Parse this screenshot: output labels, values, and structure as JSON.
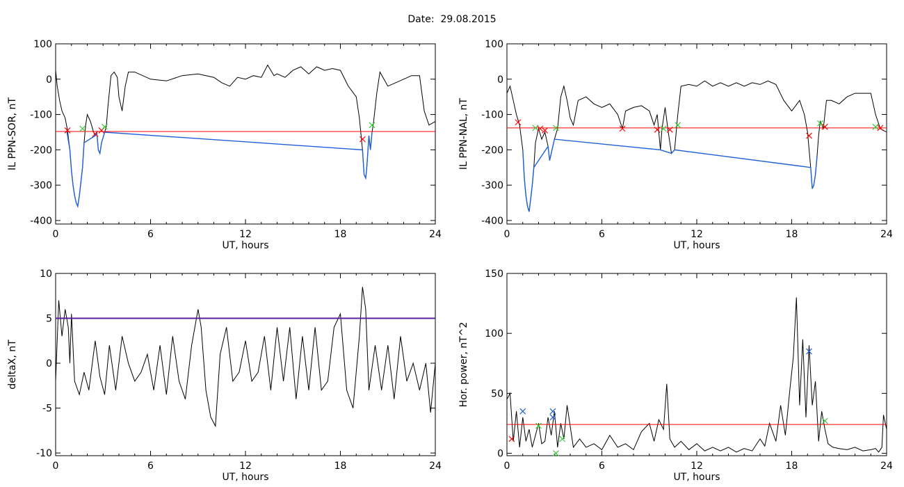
{
  "page": {
    "title_label": "Date:",
    "title_date": "29.08.2015"
  },
  "chart_data": [
    {
      "type": "line",
      "xlabel": "UT, hours",
      "ylabel": "IL PPN-SOR, nT",
      "xlim": [
        0,
        24
      ],
      "ylim": [
        -410,
        100
      ],
      "xticks": [
        0,
        6,
        12,
        18,
        24
      ],
      "yticks": [
        100,
        0,
        -100,
        -200,
        -300,
        -400
      ],
      "grid": false,
      "series": [
        {
          "color": "#000000",
          "x": [
            0,
            0.1,
            0.25,
            0.4,
            0.6,
            0.75,
            0.9,
            1.0,
            1.1,
            1.2,
            1.3,
            1.4,
            1.5,
            1.6,
            1.7,
            1.8,
            1.9,
            2.0,
            2.2,
            2.4,
            2.5,
            2.6,
            2.7,
            2.8,
            2.9,
            3.0,
            3.1,
            3.2,
            3.3,
            3.5,
            3.7,
            3.9,
            4.0,
            4.2,
            4.4,
            4.6,
            5.0,
            6.0,
            7.0,
            8.0,
            9.0,
            10.0,
            10.5,
            11.0,
            11.5,
            12.0,
            12.5,
            13.0,
            13.4,
            13.8,
            14.0,
            14.5,
            15.0,
            15.5,
            16.0,
            16.5,
            17.0,
            17.5,
            18.0,
            18.5,
            19.0,
            19.2,
            19.4,
            19.5,
            19.6,
            19.65,
            19.7,
            19.8,
            19.9,
            20.0,
            20.1,
            20.3,
            20.5,
            21.0,
            22.0,
            22.5,
            23.0,
            23.3,
            23.6,
            24.0
          ],
          "y": [
            25,
            -20,
            -60,
            -90,
            -110,
            -145,
            -200,
            -260,
            -300,
            -330,
            -350,
            -360,
            -330,
            -290,
            -250,
            -180,
            -130,
            -100,
            -120,
            -150,
            -160,
            -150,
            -200,
            -210,
            -180,
            -165,
            -150,
            -135,
            -80,
            10,
            20,
            5,
            -50,
            -90,
            -20,
            20,
            20,
            0,
            -5,
            10,
            15,
            5,
            -10,
            -20,
            5,
            0,
            10,
            5,
            40,
            10,
            15,
            5,
            25,
            35,
            15,
            35,
            25,
            30,
            25,
            -20,
            -50,
            -110,
            -200,
            -270,
            -280,
            -260,
            -230,
            -160,
            -200,
            -150,
            -120,
            -40,
            20,
            -20,
            0,
            10,
            10,
            -90,
            -130,
            -120
          ],
          "label": ""
        },
        {
          "color": "#1e5fd8",
          "x": [
            0.7,
            0.9,
            1.0,
            1.1,
            1.2,
            1.3,
            1.4,
            1.5,
            1.6,
            1.7,
            1.8,
            2.5,
            2.6,
            2.7,
            2.8,
            2.9,
            3.0,
            3.1,
            19.4,
            19.5,
            19.6,
            19.65,
            19.7,
            19.8,
            19.9,
            20.0
          ],
          "y": [
            -145,
            -200,
            -260,
            -300,
            -330,
            -350,
            -360,
            -330,
            -290,
            -250,
            -180,
            -160,
            -150,
            -200,
            -210,
            -180,
            -165,
            -150,
            -200,
            -270,
            -280,
            -260,
            -230,
            -160,
            -200,
            -150
          ],
          "label": ""
        }
      ],
      "threshold": {
        "y": -148,
        "color": "#ff0000"
      },
      "markers": [
        {
          "x": 0.75,
          "y": -145,
          "color": "#ff0000"
        },
        {
          "x": 1.7,
          "y": -140,
          "color": "#33cc33"
        },
        {
          "x": 2.5,
          "y": -155,
          "color": "#ff0000"
        },
        {
          "x": 2.9,
          "y": -145,
          "color": "#ff0000"
        },
        {
          "x": 3.1,
          "y": -135,
          "color": "#33cc33"
        },
        {
          "x": 19.4,
          "y": -170,
          "color": "#ff0000"
        },
        {
          "x": 20.0,
          "y": -130,
          "color": "#33cc33"
        }
      ]
    },
    {
      "type": "line",
      "xlabel": "UT, hours",
      "ylabel": "IL PPN-NAL, nT",
      "xlim": [
        0,
        24
      ],
      "ylim": [
        -410,
        100
      ],
      "xticks": [
        0,
        6,
        12,
        18,
        24
      ],
      "yticks": [
        100,
        0,
        -100,
        -200,
        -300,
        -400
      ],
      "grid": false,
      "series": [
        {
          "color": "#000000",
          "x": [
            0,
            0.2,
            0.4,
            0.6,
            0.8,
            1.0,
            1.1,
            1.2,
            1.3,
            1.4,
            1.5,
            1.6,
            1.7,
            1.8,
            2.0,
            2.2,
            2.4,
            2.6,
            2.7,
            2.8,
            3.0,
            3.2,
            3.4,
            3.6,
            3.8,
            4.0,
            4.2,
            4.5,
            5.0,
            5.5,
            6.0,
            6.5,
            7.0,
            7.3,
            7.5,
            8.0,
            8.5,
            9.0,
            9.3,
            9.5,
            9.7,
            9.8,
            10.0,
            10.2,
            10.4,
            10.6,
            10.8,
            11.0,
            11.5,
            12.0,
            12.5,
            13.0,
            13.5,
            14.0,
            14.5,
            15.0,
            15.5,
            16.0,
            16.5,
            17.0,
            17.5,
            18.0,
            18.5,
            18.8,
            19.0,
            19.2,
            19.3,
            19.4,
            19.5,
            19.6,
            19.7,
            19.8,
            20.0,
            20.2,
            20.5,
            21.0,
            21.5,
            22.0,
            22.5,
            23.0,
            23.3,
            23.6,
            24.0
          ],
          "y": [
            -40,
            -20,
            -60,
            -100,
            -130,
            -200,
            -280,
            -330,
            -360,
            -375,
            -340,
            -300,
            -250,
            -180,
            -140,
            -170,
            -150,
            -190,
            -230,
            -210,
            -170,
            -140,
            -50,
            -20,
            -60,
            -110,
            -130,
            -60,
            -50,
            -70,
            -80,
            -70,
            -100,
            -140,
            -90,
            -80,
            -75,
            -90,
            -130,
            -100,
            -200,
            -140,
            -80,
            -150,
            -210,
            -200,
            -100,
            -20,
            -15,
            -20,
            -5,
            -20,
            -10,
            -20,
            -10,
            -20,
            -10,
            -15,
            -5,
            -15,
            -60,
            -90,
            -60,
            -100,
            -150,
            -250,
            -310,
            -300,
            -270,
            -220,
            -160,
            -120,
            -140,
            -60,
            -60,
            -70,
            -50,
            -40,
            -40,
            -40,
            -100,
            -140,
            -150
          ],
          "label": ""
        },
        {
          "color": "#1e5fd8",
          "x": [
            1.0,
            1.1,
            1.2,
            1.3,
            1.4,
            1.5,
            1.6,
            1.7,
            2.6,
            2.7,
            2.8,
            3.0,
            9.7,
            10.4,
            10.6,
            19.2,
            19.3,
            19.4,
            19.5,
            19.6
          ],
          "y": [
            -200,
            -280,
            -330,
            -360,
            -375,
            -340,
            -300,
            -250,
            -190,
            -230,
            -210,
            -170,
            -200,
            -210,
            -200,
            -250,
            -310,
            -300,
            -270,
            -220
          ],
          "label": ""
        }
      ],
      "threshold": {
        "y": -138,
        "color": "#ff0000"
      },
      "markers": [
        {
          "x": 0.7,
          "y": -122,
          "color": "#ff0000"
        },
        {
          "x": 1.8,
          "y": -138,
          "color": "#33cc33"
        },
        {
          "x": 2.1,
          "y": -140,
          "color": "#ff0000"
        },
        {
          "x": 2.4,
          "y": -145,
          "color": "#ff0000"
        },
        {
          "x": 3.1,
          "y": -138,
          "color": "#33cc33"
        },
        {
          "x": 7.3,
          "y": -140,
          "color": "#ff0000"
        },
        {
          "x": 9.5,
          "y": -143,
          "color": "#ff0000"
        },
        {
          "x": 9.9,
          "y": -140,
          "color": "#33cc33"
        },
        {
          "x": 10.3,
          "y": -143,
          "color": "#ff0000"
        },
        {
          "x": 10.8,
          "y": -130,
          "color": "#33cc33"
        },
        {
          "x": 19.1,
          "y": -160,
          "color": "#ff0000"
        },
        {
          "x": 19.8,
          "y": -125,
          "color": "#33cc33"
        },
        {
          "x": 20.1,
          "y": -135,
          "color": "#ff0000"
        },
        {
          "x": 23.3,
          "y": -135,
          "color": "#33cc33"
        },
        {
          "x": 23.6,
          "y": -138,
          "color": "#ff0000"
        }
      ]
    },
    {
      "type": "line",
      "xlabel": "UT, hours",
      "ylabel": "deltaX, nT",
      "xlim": [
        0,
        24
      ],
      "ylim": [
        -10.3,
        10
      ],
      "xticks": [
        0,
        6,
        12,
        18,
        24
      ],
      "yticks": [
        10,
        5,
        0,
        -5,
        -10
      ],
      "grid": false,
      "series": [
        {
          "color": "#000000",
          "x": [
            0,
            0.2,
            0.4,
            0.6,
            0.8,
            0.9,
            1.0,
            1.2,
            1.5,
            1.8,
            2.1,
            2.5,
            2.8,
            3.1,
            3.4,
            3.8,
            4.2,
            4.6,
            5.0,
            5.4,
            5.8,
            6.2,
            6.6,
            7.0,
            7.4,
            7.8,
            8.2,
            8.6,
            9.0,
            9.2,
            9.5,
            9.8,
            10.1,
            10.4,
            10.8,
            11.2,
            11.6,
            12.0,
            12.4,
            12.8,
            13.2,
            13.6,
            14.0,
            14.4,
            14.8,
            15.2,
            15.6,
            16.0,
            16.4,
            16.8,
            17.2,
            17.6,
            18.0,
            18.4,
            18.8,
            19.2,
            19.4,
            19.6,
            19.8,
            20.2,
            20.6,
            21.0,
            21.4,
            21.8,
            22.2,
            22.6,
            23.0,
            23.4,
            23.7,
            24.0
          ],
          "y": [
            -2,
            7,
            3,
            6,
            4,
            0,
            5.5,
            -2,
            -3.5,
            -1,
            -3,
            2.5,
            -1.5,
            -3.5,
            2,
            -3,
            3,
            0,
            -2,
            -1,
            1,
            -3,
            2,
            -3.5,
            3,
            -2,
            -4,
            2,
            6,
            4,
            -3,
            -6,
            -7,
            1,
            4,
            -2,
            -1,
            2.5,
            -2,
            -1,
            3,
            -3,
            4,
            -2,
            4,
            -4,
            3,
            -3,
            4,
            -3,
            -2,
            4,
            5.5,
            -3,
            -5,
            3,
            8.5,
            6,
            -3,
            2,
            -3,
            2,
            -4,
            3,
            -2,
            0,
            -3,
            0,
            -5.5,
            0
          ],
          "label": ""
        }
      ],
      "threshold": {
        "y": 5,
        "color": "#5a1f9a"
      },
      "markers": []
    },
    {
      "type": "line",
      "xlabel": "UT, hours",
      "ylabel": "Hor. power, nT^2",
      "xlim": [
        0,
        24
      ],
      "ylim": [
        -2,
        150
      ],
      "xticks": [
        0,
        6,
        12,
        18,
        24
      ],
      "yticks": [
        150,
        100,
        50,
        0
      ],
      "grid": false,
      "series": [
        {
          "color": "#000000",
          "x": [
            0,
            0.2,
            0.4,
            0.6,
            0.8,
            1.0,
            1.2,
            1.4,
            1.6,
            1.8,
            2.0,
            2.2,
            2.4,
            2.6,
            2.8,
            3.0,
            3.2,
            3.4,
            3.6,
            3.8,
            4.2,
            4.6,
            5.0,
            5.5,
            6.0,
            6.5,
            7.0,
            7.5,
            8.0,
            8.5,
            9.0,
            9.3,
            9.6,
            9.9,
            10.1,
            10.3,
            10.6,
            11.0,
            11.5,
            12.0,
            12.5,
            13.0,
            13.5,
            14.0,
            14.5,
            15.0,
            15.5,
            16.0,
            16.3,
            16.6,
            17.0,
            17.3,
            17.6,
            17.9,
            18.1,
            18.3,
            18.5,
            18.7,
            18.9,
            19.1,
            19.3,
            19.5,
            19.7,
            19.9,
            20.1,
            20.3,
            20.6,
            21.0,
            21.5,
            22.0,
            22.5,
            23.0,
            23.3,
            23.5,
            23.7,
            23.8,
            24.0
          ],
          "y": [
            45,
            50,
            10,
            35,
            5,
            30,
            10,
            20,
            5,
            15,
            25,
            8,
            10,
            30,
            15,
            35,
            5,
            25,
            12,
            40,
            5,
            12,
            5,
            8,
            3,
            15,
            5,
            8,
            3,
            18,
            25,
            10,
            28,
            20,
            58,
            12,
            5,
            10,
            3,
            8,
            2,
            5,
            2,
            5,
            1,
            4,
            2,
            12,
            6,
            25,
            10,
            40,
            15,
            55,
            80,
            130,
            40,
            95,
            30,
            90,
            40,
            60,
            10,
            35,
            20,
            8,
            5,
            4,
            3,
            5,
            2,
            3,
            4,
            1,
            5,
            32,
            20
          ],
          "label": ""
        }
      ],
      "threshold": {
        "y": 24,
        "color": "#ff0000"
      },
      "markers": [
        {
          "x": 0.3,
          "y": 12,
          "color": "#ff0000"
        },
        {
          "x": 1.0,
          "y": 35,
          "color": "#1e5fd8"
        },
        {
          "x": 2.0,
          "y": 23,
          "color": "#33cc33"
        },
        {
          "x": 2.9,
          "y": 35,
          "color": "#1e5fd8"
        },
        {
          "x": 2.9,
          "y": 30,
          "color": "#1e5fd8"
        },
        {
          "x": 3.1,
          "y": 0,
          "color": "#33cc33"
        },
        {
          "x": 3.5,
          "y": 12,
          "color": "#33cc33"
        },
        {
          "x": 19.1,
          "y": 85,
          "color": "#1e5fd8"
        },
        {
          "x": 20.1,
          "y": 27,
          "color": "#33cc33"
        }
      ]
    }
  ]
}
